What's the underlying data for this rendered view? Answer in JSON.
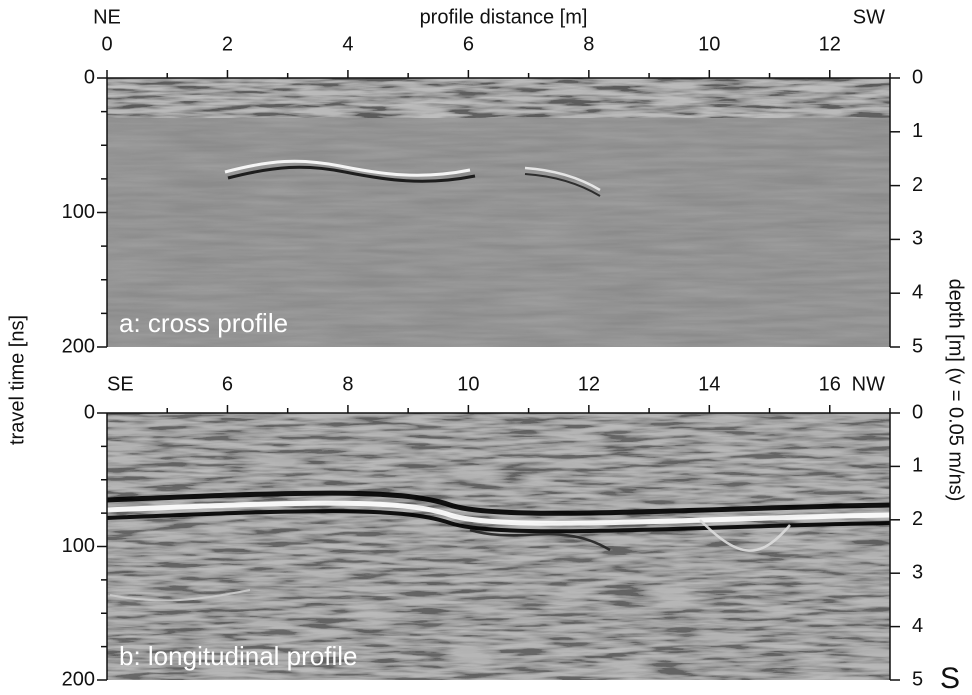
{
  "chart_data": [
    {
      "type": "radargram",
      "xlabel": "profile distance [m]",
      "x_left_label": "NE",
      "x_right_label": "SW",
      "panel_label": "a: cross profile",
      "xlim": [
        0,
        13
      ],
      "xticks": [
        0,
        2,
        4,
        6,
        8,
        10,
        12
      ],
      "xminorticks": [
        1,
        3,
        5,
        7,
        9,
        11,
        13
      ],
      "ylim": [
        0,
        200
      ],
      "yticks": [
        0,
        100,
        200
      ],
      "yminorticks": [
        25,
        50,
        75,
        125,
        150,
        175
      ],
      "y2lim": [
        0,
        5
      ],
      "y2ticks": [
        0,
        1,
        2,
        3,
        4,
        5
      ]
    },
    {
      "type": "radargram",
      "x_left_label": "SE",
      "x_right_label": "NW",
      "panel_label": "b: longitudinal profile",
      "xlim": [
        4,
        17
      ],
      "xticks": [
        6,
        8,
        10,
        12,
        14,
        16
      ],
      "xminorticks": [
        5,
        7,
        9,
        11,
        13,
        15,
        17
      ],
      "ylim": [
        0,
        200
      ],
      "yticks": [
        0,
        100,
        200
      ],
      "yminorticks": [
        25,
        50,
        75,
        125,
        150,
        175
      ],
      "y2lim": [
        0,
        5
      ],
      "y2ticks": [
        0,
        1,
        2,
        3,
        4,
        5
      ]
    }
  ],
  "ylabel": "travel time [ns]",
  "y2label": "depth [m]  (v = 0.05 m/ns)",
  "fragment": "S"
}
